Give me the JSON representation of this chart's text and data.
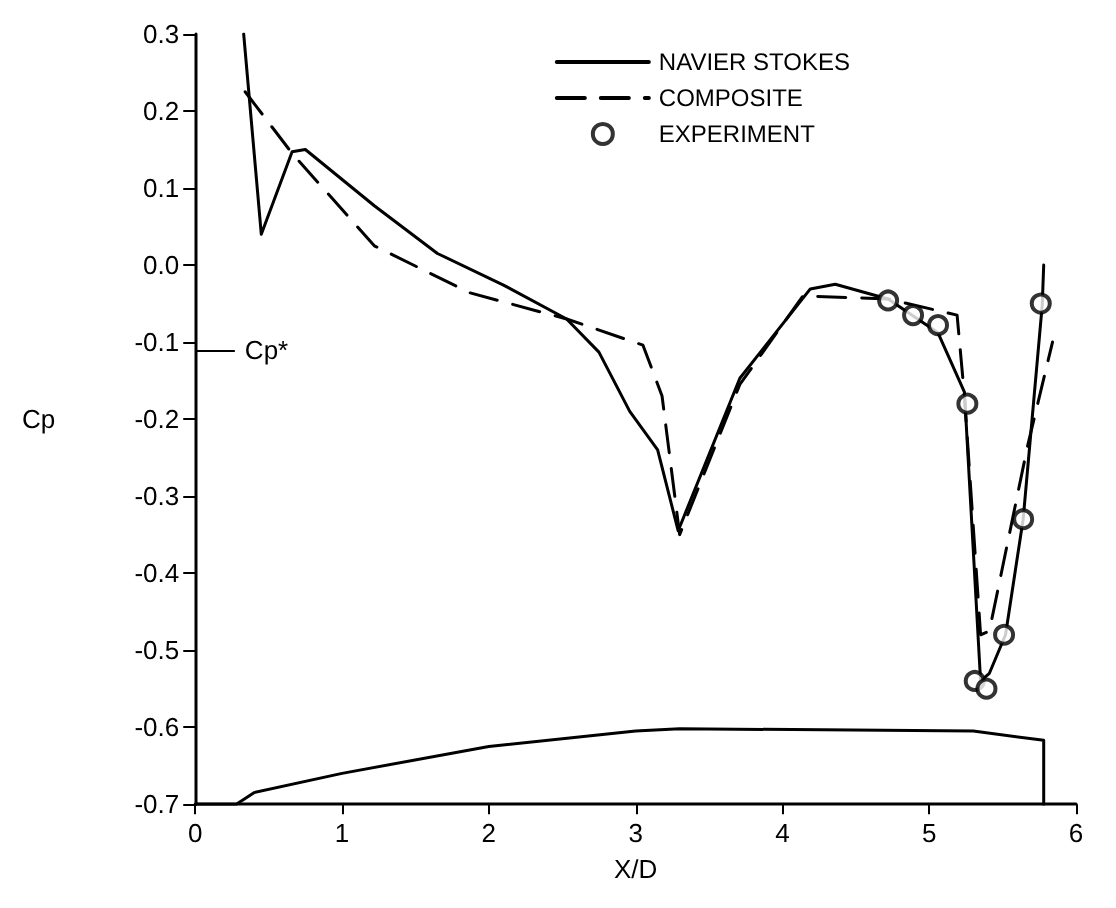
{
  "chart_data": {
    "type": "line",
    "xlabel": "X/D",
    "ylabel": "Cp",
    "xlim": [
      0,
      6
    ],
    "ylim": [
      -0.7,
      0.3
    ],
    "xticks": [
      0,
      1,
      2,
      3,
      4,
      5,
      6
    ],
    "yticks": [
      -0.7,
      -0.6,
      -0.5,
      -0.4,
      -0.3,
      -0.2,
      -0.1,
      {
        "value": 0,
        "label": "0.0"
      },
      0.1,
      0.2,
      0.3
    ],
    "grid": false,
    "legend": "top right",
    "series": [
      {
        "name": "NAVIER STOKES",
        "color": "#000000",
        "line_style": "solid",
        "marker": "none",
        "x": [
          0.33,
          0.45,
          0.66,
          0.75,
          1.22,
          1.65,
          2.1,
          2.53,
          2.75,
          2.96,
          3.15,
          3.29,
          3.71,
          4.19,
          4.36,
          4.72,
          5.06,
          5.24,
          5.35,
          5.41,
          5.52,
          5.64,
          5.77,
          5.78
        ],
        "values": [
          0.3,
          0.04,
          0.147,
          0.15,
          0.077,
          0.015,
          -0.026,
          -0.07,
          -0.113,
          -0.19,
          -0.24,
          -0.345,
          -0.147,
          -0.031,
          -0.025,
          -0.044,
          -0.088,
          -0.165,
          -0.54,
          -0.53,
          -0.48,
          -0.33,
          -0.052,
          0.0
        ]
      },
      {
        "name": "COMPOSITE",
        "color": "#000000",
        "line_style": "dashed",
        "marker": "none",
        "x": [
          0.34,
          0.66,
          1.22,
          1.87,
          2.53,
          3.05,
          3.18,
          3.28,
          3.3,
          3.71,
          4.14,
          4.72,
          5.19,
          5.24,
          5.35,
          5.41,
          5.67,
          5.84
        ],
        "values": [
          0.225,
          0.145,
          0.025,
          -0.036,
          -0.07,
          -0.104,
          -0.17,
          -0.32,
          -0.35,
          -0.155,
          -0.04,
          -0.044,
          -0.065,
          -0.17,
          -0.48,
          -0.475,
          -0.235,
          -0.1
        ]
      },
      {
        "name": "EXPERIMENT",
        "type": "scatter",
        "color": "#000000",
        "marker": "circle",
        "x": [
          4.72,
          4.89,
          5.06,
          5.26,
          5.31,
          5.39,
          5.51,
          5.64,
          5.76
        ],
        "values": [
          -0.046,
          -0.065,
          -0.078,
          -0.18,
          -0.54,
          -0.55,
          -0.48,
          -0.33,
          -0.05
        ]
      },
      {
        "color": "#000000",
        "line_style": "solid",
        "marker": "none",
        "x": [
          0,
          0.28,
          0.4,
          1,
          2,
          3,
          3.3,
          5.3,
          5.78,
          5.78
        ],
        "values": [
          -0.7,
          -0.7,
          -0.685,
          -0.66,
          -0.625,
          -0.605,
          -0.602,
          -0.605,
          -0.617,
          -0.7
        ]
      }
    ],
    "ref_lines": [
      {
        "axis": "y",
        "value": -0.11,
        "label": "Cp*"
      }
    ]
  }
}
